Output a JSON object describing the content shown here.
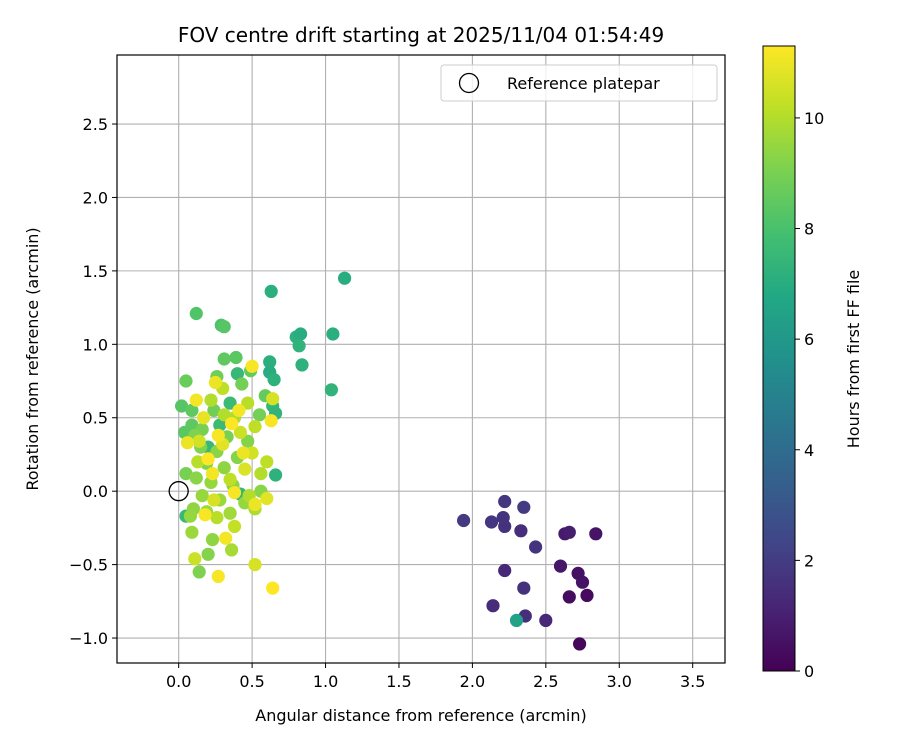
{
  "chart_data": {
    "type": "scatter",
    "title": "FOV centre drift starting at 2025/11/04 01:54:49",
    "xlabel": "Angular distance from reference (arcmin)",
    "ylabel": "Rotation from reference (arcmin)",
    "xlim": [
      -0.42,
      3.72
    ],
    "ylim": [
      -1.17,
      2.97
    ],
    "xticks": [
      0.0,
      0.5,
      1.0,
      1.5,
      2.0,
      2.5,
      3.0,
      3.5
    ],
    "xtick_labels": [
      "0.0",
      "0.5",
      "1.0",
      "1.5",
      "2.0",
      "2.5",
      "3.0",
      "3.5"
    ],
    "yticks": [
      -1.0,
      -0.5,
      0.0,
      0.5,
      1.0,
      1.5,
      2.0,
      2.5
    ],
    "ytick_labels": [
      "−1.0",
      "−0.5",
      "0.0",
      "0.5",
      "1.0",
      "1.5",
      "2.0",
      "2.5"
    ],
    "grid": true,
    "legend": {
      "position": "top-right",
      "label": "Reference platepar"
    },
    "reference_point": {
      "x": 0.0,
      "y": 0.0
    },
    "colorbar": {
      "label": "Hours from first FF file",
      "min": 0,
      "max": 11.3,
      "ticks": [
        0,
        2,
        4,
        6,
        8,
        10
      ],
      "tick_labels": [
        "0",
        "2",
        "4",
        "6",
        "8",
        "10"
      ],
      "colormap": "viridis"
    },
    "points": [
      {
        "x": 2.73,
        "y": -1.04,
        "c": 0.2
      },
      {
        "x": 2.66,
        "y": -0.72,
        "c": 0.4
      },
      {
        "x": 2.78,
        "y": -0.71,
        "c": 0.3
      },
      {
        "x": 2.75,
        "y": -0.62,
        "c": 0.6
      },
      {
        "x": 2.72,
        "y": -0.56,
        "c": 0.5
      },
      {
        "x": 2.6,
        "y": -0.51,
        "c": 0.7
      },
      {
        "x": 2.63,
        "y": -0.29,
        "c": 0.8
      },
      {
        "x": 2.66,
        "y": -0.28,
        "c": 0.9
      },
      {
        "x": 2.84,
        "y": -0.29,
        "c": 0.6
      },
      {
        "x": 2.5,
        "y": -0.88,
        "c": 1.3
      },
      {
        "x": 2.36,
        "y": -0.85,
        "c": 1.5
      },
      {
        "x": 2.35,
        "y": -0.66,
        "c": 1.6
      },
      {
        "x": 2.14,
        "y": -0.78,
        "c": 1.4
      },
      {
        "x": 2.22,
        "y": -0.54,
        "c": 1.3
      },
      {
        "x": 2.43,
        "y": -0.38,
        "c": 1.7
      },
      {
        "x": 2.33,
        "y": -0.27,
        "c": 1.5
      },
      {
        "x": 2.22,
        "y": -0.24,
        "c": 1.6
      },
      {
        "x": 2.13,
        "y": -0.21,
        "c": 1.8
      },
      {
        "x": 2.21,
        "y": -0.18,
        "c": 1.7
      },
      {
        "x": 1.94,
        "y": -0.2,
        "c": 1.9
      },
      {
        "x": 2.22,
        "y": -0.07,
        "c": 1.8
      },
      {
        "x": 2.35,
        "y": -0.11,
        "c": 1.9
      },
      {
        "x": 2.3,
        "y": -0.88,
        "c": 6.5
      },
      {
        "x": 1.13,
        "y": 1.45,
        "c": 7.0
      },
      {
        "x": 0.63,
        "y": 1.36,
        "c": 7.1
      },
      {
        "x": 1.05,
        "y": 1.07,
        "c": 7.1
      },
      {
        "x": 0.8,
        "y": 1.05,
        "c": 7.2
      },
      {
        "x": 0.83,
        "y": 1.07,
        "c": 7.0
      },
      {
        "x": 0.82,
        "y": 0.99,
        "c": 7.3
      },
      {
        "x": 0.84,
        "y": 0.86,
        "c": 7.2
      },
      {
        "x": 0.62,
        "y": 0.88,
        "c": 7.1
      },
      {
        "x": 0.62,
        "y": 0.81,
        "c": 7.0
      },
      {
        "x": 0.65,
        "y": 0.76,
        "c": 7.2
      },
      {
        "x": 1.04,
        "y": 0.69,
        "c": 7.3
      },
      {
        "x": 0.64,
        "y": 0.58,
        "c": 7.4
      },
      {
        "x": 0.66,
        "y": 0.53,
        "c": 7.3
      },
      {
        "x": 0.66,
        "y": 0.11,
        "c": 7.2
      },
      {
        "x": 0.4,
        "y": 0.8,
        "c": 7.5
      },
      {
        "x": 0.35,
        "y": 0.6,
        "c": 7.6
      },
      {
        "x": 0.28,
        "y": 0.45,
        "c": 7.6
      },
      {
        "x": 0.2,
        "y": 0.3,
        "c": 7.5
      },
      {
        "x": 0.42,
        "y": -0.02,
        "c": 7.4
      },
      {
        "x": 0.05,
        "y": -0.17,
        "c": 7.5
      },
      {
        "x": 0.12,
        "y": 1.21,
        "c": 8.2
      },
      {
        "x": 0.29,
        "y": 1.13,
        "c": 8.1
      },
      {
        "x": 0.31,
        "y": 1.12,
        "c": 8.3
      },
      {
        "x": 0.31,
        "y": 0.9,
        "c": 8.5
      },
      {
        "x": 0.39,
        "y": 0.91,
        "c": 8.4
      },
      {
        "x": 0.49,
        "y": 0.82,
        "c": 8.6
      },
      {
        "x": 0.26,
        "y": 0.78,
        "c": 8.8
      },
      {
        "x": 0.05,
        "y": 0.75,
        "c": 8.7
      },
      {
        "x": 0.43,
        "y": 0.73,
        "c": 8.9
      },
      {
        "x": 0.59,
        "y": 0.65,
        "c": 8.6
      },
      {
        "x": 0.02,
        "y": 0.58,
        "c": 8.3
      },
      {
        "x": 0.09,
        "y": 0.55,
        "c": 8.5
      },
      {
        "x": 0.24,
        "y": 0.55,
        "c": 8.8
      },
      {
        "x": 0.55,
        "y": 0.52,
        "c": 8.9
      },
      {
        "x": 0.09,
        "y": 0.45,
        "c": 8.5
      },
      {
        "x": 0.16,
        "y": 0.42,
        "c": 9.0
      },
      {
        "x": 0.04,
        "y": 0.4,
        "c": 8.4
      },
      {
        "x": 0.11,
        "y": 0.38,
        "c": 9.1
      },
      {
        "x": 0.33,
        "y": 0.37,
        "c": 9.0
      },
      {
        "x": 0.47,
        "y": 0.34,
        "c": 9.2
      },
      {
        "x": 0.15,
        "y": 0.3,
        "c": 9.1
      },
      {
        "x": 0.26,
        "y": 0.27,
        "c": 9.3
      },
      {
        "x": 0.4,
        "y": 0.23,
        "c": 9.2
      },
      {
        "x": 0.19,
        "y": 0.19,
        "c": 9.1
      },
      {
        "x": 0.31,
        "y": 0.16,
        "c": 9.4
      },
      {
        "x": 0.05,
        "y": 0.12,
        "c": 9.0
      },
      {
        "x": 0.12,
        "y": 0.09,
        "c": 9.3
      },
      {
        "x": 0.22,
        "y": 0.06,
        "c": 9.5
      },
      {
        "x": 0.37,
        "y": 0.04,
        "c": 9.4
      },
      {
        "x": 0.56,
        "y": 0.0,
        "c": 9.3
      },
      {
        "x": 0.16,
        "y": -0.03,
        "c": 9.5
      },
      {
        "x": 0.28,
        "y": -0.06,
        "c": 9.6
      },
      {
        "x": 0.45,
        "y": -0.08,
        "c": 9.5
      },
      {
        "x": 0.1,
        "y": -0.12,
        "c": 9.4
      },
      {
        "x": 0.19,
        "y": -0.14,
        "c": 9.6
      },
      {
        "x": 0.35,
        "y": -0.15,
        "c": 9.7
      },
      {
        "x": 0.08,
        "y": -0.17,
        "c": 9.5
      },
      {
        "x": 0.23,
        "y": -0.33,
        "c": 9.4
      },
      {
        "x": 0.2,
        "y": -0.43,
        "c": 9.2
      },
      {
        "x": 0.14,
        "y": -0.55,
        "c": 9.1
      },
      {
        "x": 0.09,
        "y": -0.28,
        "c": 9.6
      },
      {
        "x": 0.36,
        "y": -0.4,
        "c": 9.8
      },
      {
        "x": 0.52,
        "y": -0.12,
        "c": 9.9
      },
      {
        "x": 0.38,
        "y": 0.5,
        "c": 9.9
      },
      {
        "x": 0.22,
        "y": 0.62,
        "c": 10.0
      },
      {
        "x": 0.47,
        "y": 0.6,
        "c": 10.1
      },
      {
        "x": 0.31,
        "y": 0.52,
        "c": 10.0
      },
      {
        "x": 0.52,
        "y": 0.44,
        "c": 10.2
      },
      {
        "x": 0.13,
        "y": 0.2,
        "c": 10.1
      },
      {
        "x": 0.35,
        "y": 0.08,
        "c": 10.2
      },
      {
        "x": 0.48,
        "y": -0.03,
        "c": 10.0
      },
      {
        "x": 0.26,
        "y": -0.18,
        "c": 10.1
      },
      {
        "x": 0.6,
        "y": 0.2,
        "c": 10.2
      },
      {
        "x": 0.56,
        "y": 0.12,
        "c": 10.0
      },
      {
        "x": 0.3,
        "y": 0.7,
        "c": 10.2
      },
      {
        "x": 0.42,
        "y": 0.4,
        "c": 10.4
      },
      {
        "x": 0.14,
        "y": 0.34,
        "c": 10.5
      },
      {
        "x": 0.24,
        "y": -0.06,
        "c": 10.6
      },
      {
        "x": 0.11,
        "y": -0.46,
        "c": 10.4
      },
      {
        "x": 0.64,
        "y": 0.63,
        "c": 10.6
      },
      {
        "x": 0.5,
        "y": 0.26,
        "c": 10.5
      },
      {
        "x": 0.38,
        "y": -0.24,
        "c": 10.3
      },
      {
        "x": 0.52,
        "y": -0.5,
        "c": 10.6
      },
      {
        "x": 0.3,
        "y": 0.32,
        "c": 10.8
      },
      {
        "x": 0.17,
        "y": 0.5,
        "c": 10.9
      },
      {
        "x": 0.45,
        "y": 0.15,
        "c": 10.7
      },
      {
        "x": 0.6,
        "y": -0.05,
        "c": 10.8
      },
      {
        "x": 0.06,
        "y": 0.33,
        "c": 11.0
      },
      {
        "x": 0.12,
        "y": 0.62,
        "c": 11.1
      },
      {
        "x": 0.25,
        "y": 0.74,
        "c": 11.0
      },
      {
        "x": 0.5,
        "y": 0.85,
        "c": 11.2
      },
      {
        "x": 0.41,
        "y": 0.55,
        "c": 11.1
      },
      {
        "x": 0.27,
        "y": 0.38,
        "c": 11.2
      },
      {
        "x": 0.44,
        "y": 0.26,
        "c": 11.0
      },
      {
        "x": 0.23,
        "y": 0.12,
        "c": 11.1
      },
      {
        "x": 0.38,
        "y": -0.01,
        "c": 11.2
      },
      {
        "x": 0.52,
        "y": -0.09,
        "c": 11.0
      },
      {
        "x": 0.32,
        "y": -0.32,
        "c": 11.1
      },
      {
        "x": 0.27,
        "y": -0.58,
        "c": 11.2
      },
      {
        "x": 0.64,
        "y": -0.66,
        "c": 11.3
      },
      {
        "x": 0.63,
        "y": 0.48,
        "c": 11.2
      },
      {
        "x": 0.2,
        "y": 0.22,
        "c": 11.3
      },
      {
        "x": 0.36,
        "y": 0.46,
        "c": 11.3
      },
      {
        "x": 0.18,
        "y": -0.16,
        "c": 11.2
      }
    ]
  }
}
